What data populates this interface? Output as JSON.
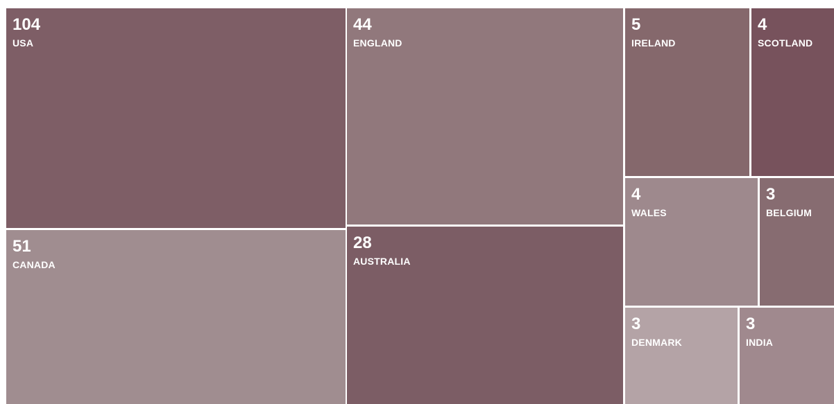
{
  "chart_data": {
    "type": "treemap",
    "items": [
      {
        "label": "USA",
        "value": 104,
        "color": "#7e5e66"
      },
      {
        "label": "ENGLAND",
        "value": 44,
        "color": "#91787c"
      },
      {
        "label": "CANADA",
        "value": 51,
        "color": "#a08d90"
      },
      {
        "label": "AUSTRALIA",
        "value": 28,
        "color": "#7c5d65"
      },
      {
        "label": "IRELAND",
        "value": 5,
        "color": "#85686c"
      },
      {
        "label": "SCOTLAND",
        "value": 4,
        "color": "#77525c"
      },
      {
        "label": "WALES",
        "value": 4,
        "color": "#9e898d"
      },
      {
        "label": "BELGIUM",
        "value": 3,
        "color": "#876c71"
      },
      {
        "label": "DENMARK",
        "value": 3,
        "color": "#b4a3a6"
      },
      {
        "label": "INDIA",
        "value": 3,
        "color": "#a0898e"
      }
    ]
  }
}
